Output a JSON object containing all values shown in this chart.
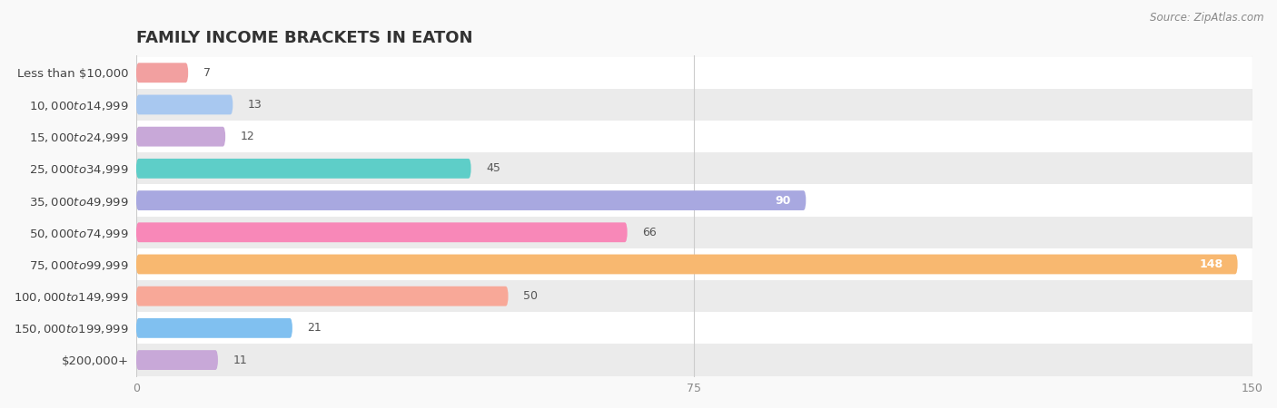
{
  "title": "FAMILY INCOME BRACKETS IN EATON",
  "source": "Source: ZipAtlas.com",
  "categories": [
    "Less than $10,000",
    "$10,000 to $14,999",
    "$15,000 to $24,999",
    "$25,000 to $34,999",
    "$35,000 to $49,999",
    "$50,000 to $74,999",
    "$75,000 to $99,999",
    "$100,000 to $149,999",
    "$150,000 to $199,999",
    "$200,000+"
  ],
  "values": [
    7,
    13,
    12,
    45,
    90,
    66,
    148,
    50,
    21,
    11
  ],
  "bar_colors": [
    "#F2A0A0",
    "#A8C8F0",
    "#C8A8D8",
    "#5ECEC8",
    "#A8A8E0",
    "#F888B8",
    "#F8B870",
    "#F8A898",
    "#80C0F0",
    "#C8A8D8"
  ],
  "xlim": [
    0,
    150
  ],
  "xticks": [
    0,
    75,
    150
  ],
  "bar_height": 0.62,
  "background_color": "#f9f9f9",
  "title_fontsize": 13,
  "label_fontsize": 9.5,
  "value_fontsize": 9
}
